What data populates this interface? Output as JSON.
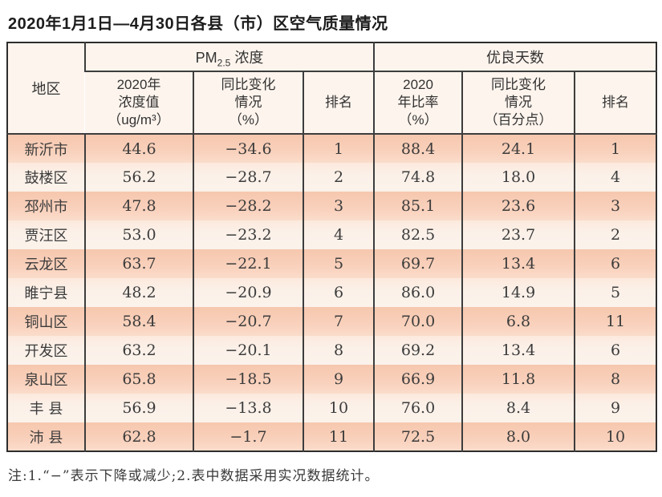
{
  "title": "2020年1月1日—4月30日各县（市）区空气质量情况",
  "note": "注:1.“−”表示下降或减少;2.表中数据采用实况数据统计。",
  "colors": {
    "stripe_peach": "#f8ccb4",
    "stripe_cream": "#fbf0e7",
    "header_bg": "#fdf4ed",
    "border_dark": "#3d3d3d",
    "text_dark": "#3c3c3c"
  },
  "table": {
    "region_header": "地区",
    "pm_group": {
      "prefix": "PM",
      "sub": "2.5",
      "suffix": " 浓度"
    },
    "good_group": "优良天数",
    "subheaders": {
      "pm_value": "2020年\n浓度值\n（ug/m³）",
      "pm_change": "同比变化\n情况\n（%）",
      "pm_rank": "排名",
      "good_rate": "2020\n年比率\n（%）",
      "good_change": "同比变化\n情况\n（百分点）",
      "good_rank": "排名"
    },
    "rows": [
      {
        "region": "新沂市",
        "pm_value": "44.6",
        "pm_change": "−34.6",
        "pm_rank": "1",
        "good_rate": "88.4",
        "good_change": "24.1",
        "good_rank": "1"
      },
      {
        "region": "鼓楼区",
        "pm_value": "56.2",
        "pm_change": "−28.7",
        "pm_rank": "2",
        "good_rate": "74.8",
        "good_change": "18.0",
        "good_rank": "4"
      },
      {
        "region": "邳州市",
        "pm_value": "47.8",
        "pm_change": "−28.2",
        "pm_rank": "3",
        "good_rate": "85.1",
        "good_change": "23.6",
        "good_rank": "3"
      },
      {
        "region": "贾汪区",
        "pm_value": "53.0",
        "pm_change": "−23.2",
        "pm_rank": "4",
        "good_rate": "82.5",
        "good_change": "23.7",
        "good_rank": "2"
      },
      {
        "region": "云龙区",
        "pm_value": "63.7",
        "pm_change": "−22.1",
        "pm_rank": "5",
        "good_rate": "69.7",
        "good_change": "13.4",
        "good_rank": "6"
      },
      {
        "region": "睢宁县",
        "pm_value": "48.2",
        "pm_change": "−20.9",
        "pm_rank": "6",
        "good_rate": "86.0",
        "good_change": "14.9",
        "good_rank": "5"
      },
      {
        "region": "铜山区",
        "pm_value": "58.4",
        "pm_change": "−20.7",
        "pm_rank": "7",
        "good_rate": "70.0",
        "good_change": "6.8",
        "good_rank": "11"
      },
      {
        "region": "开发区",
        "pm_value": "63.2",
        "pm_change": "−20.1",
        "pm_rank": "8",
        "good_rate": "69.2",
        "good_change": "13.4",
        "good_rank": "6"
      },
      {
        "region": "泉山区",
        "pm_value": "65.8",
        "pm_change": "−18.5",
        "pm_rank": "9",
        "good_rate": "66.9",
        "good_change": "11.8",
        "good_rank": "8"
      },
      {
        "region": "丰 县",
        "pm_value": "56.9",
        "pm_change": "−13.8",
        "pm_rank": "10",
        "good_rate": "76.0",
        "good_change": "8.4",
        "good_rank": "9"
      },
      {
        "region": "沛 县",
        "pm_value": "62.8",
        "pm_change": "−1.7",
        "pm_rank": "11",
        "good_rate": "72.5",
        "good_change": "8.0",
        "good_rank": "10"
      }
    ]
  },
  "chart_data": {
    "type": "table",
    "title": "2020年1月1日—4月30日各县（市）区空气质量情况",
    "columns": [
      "地区",
      "PM2.5浓度 2020年浓度值（ug/m³）",
      "PM2.5浓度 同比变化情况（%）",
      "PM2.5浓度 排名",
      "优良天数 2020年比率（%）",
      "优良天数 同比变化情况（百分点）",
      "优良天数 排名"
    ],
    "rows": [
      [
        "新沂市",
        44.6,
        -34.6,
        1,
        88.4,
        24.1,
        1
      ],
      [
        "鼓楼区",
        56.2,
        -28.7,
        2,
        74.8,
        18.0,
        4
      ],
      [
        "邳州市",
        47.8,
        -28.2,
        3,
        85.1,
        23.6,
        3
      ],
      [
        "贾汪区",
        53.0,
        -23.2,
        4,
        82.5,
        23.7,
        2
      ],
      [
        "云龙区",
        63.7,
        -22.1,
        5,
        69.7,
        13.4,
        6
      ],
      [
        "睢宁县",
        48.2,
        -20.9,
        6,
        86.0,
        14.9,
        5
      ],
      [
        "铜山区",
        58.4,
        -20.7,
        7,
        70.0,
        6.8,
        11
      ],
      [
        "开发区",
        63.2,
        -20.1,
        8,
        69.2,
        13.4,
        6
      ],
      [
        "泉山区",
        65.8,
        -18.5,
        9,
        66.9,
        11.8,
        8
      ],
      [
        "丰县",
        56.9,
        -13.8,
        10,
        76.0,
        8.4,
        9
      ],
      [
        "沛县",
        62.8,
        -1.7,
        11,
        72.5,
        8.0,
        10
      ]
    ],
    "footnote": "注:1.“−”表示下降或减少;2.表中数据采用实况数据统计。"
  }
}
